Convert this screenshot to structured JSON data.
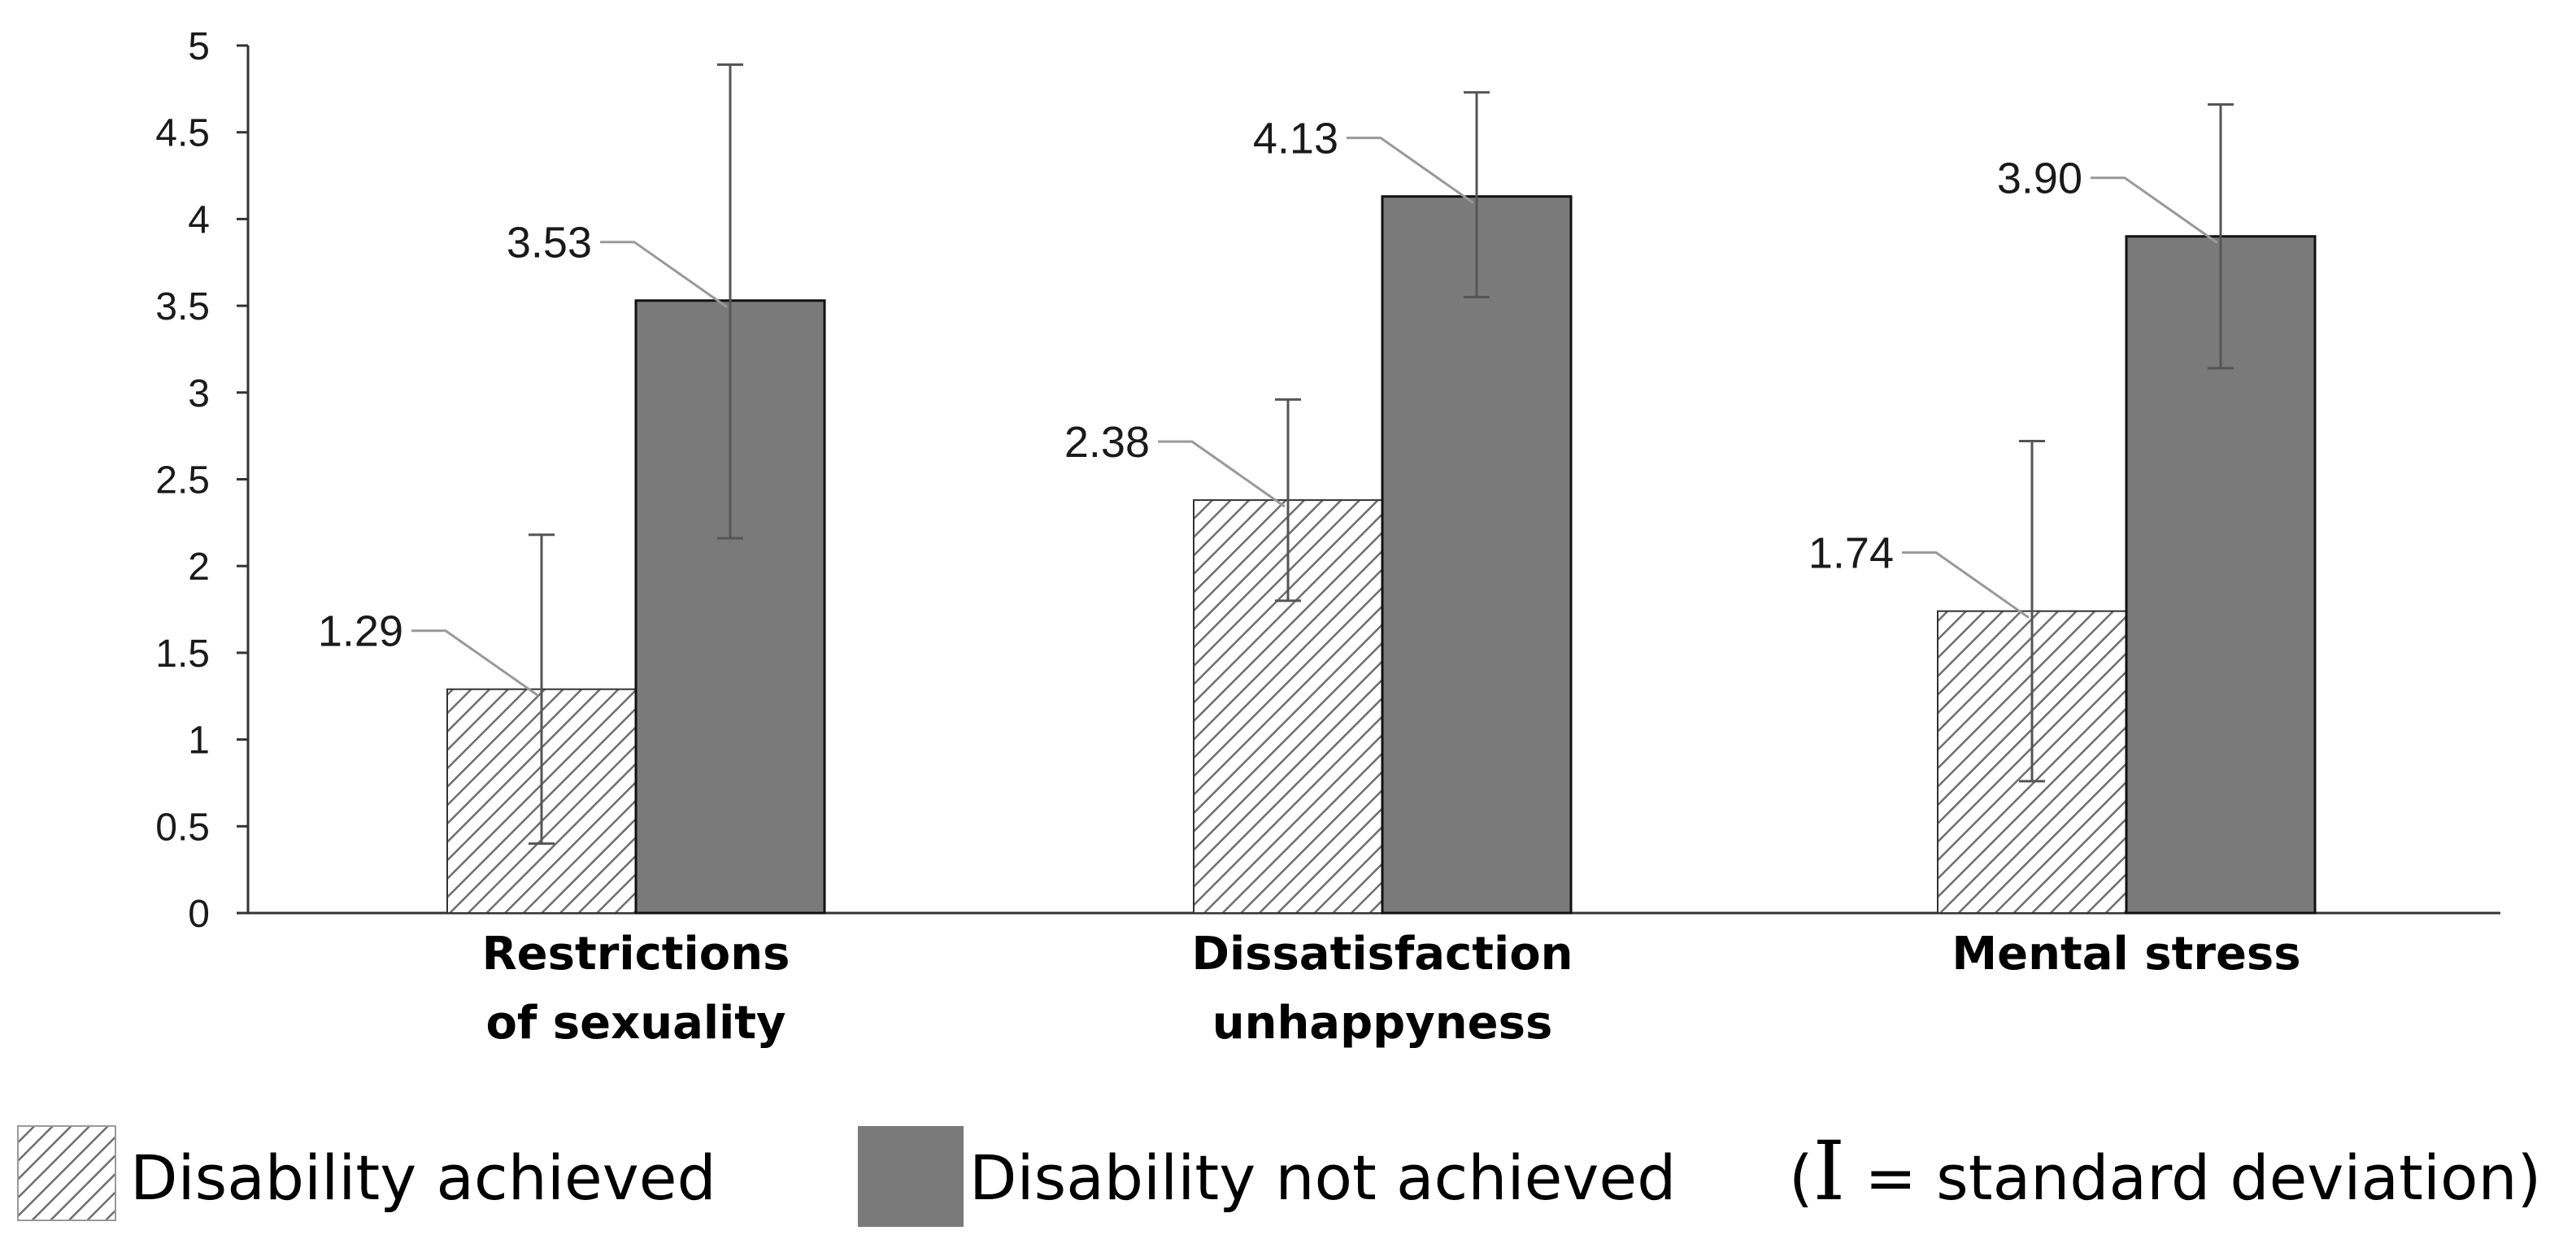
{
  "chart_data": {
    "type": "bar",
    "categories": [
      [
        "Restrictions",
        "of sexuality"
      ],
      [
        "Dissatisfaction",
        "unhappyness"
      ],
      [
        "Mental stress"
      ]
    ],
    "series": [
      {
        "name": "Disability achieved",
        "pattern": "hatched",
        "values": [
          1.29,
          2.38,
          1.74
        ],
        "labels": [
          "1.29",
          "2.38",
          "1.74"
        ],
        "err_low": [
          0.4,
          1.8,
          0.76
        ],
        "err_high": [
          2.18,
          2.96,
          2.72
        ]
      },
      {
        "name": "Disability not achieved",
        "pattern": "solid",
        "color": "#7a7a7a",
        "values": [
          3.53,
          4.13,
          3.9
        ],
        "labels": [
          "3.53",
          "4.13",
          "3.90"
        ],
        "err_low": [
          2.16,
          3.55,
          3.14
        ],
        "err_high": [
          4.89,
          4.73,
          4.66
        ]
      }
    ],
    "y_ticks": [
      "0",
      "0.5",
      "1",
      "1.5",
      "2",
      "2.5",
      "3",
      "3.5",
      "4",
      "4.5",
      "5"
    ],
    "ylim": [
      0,
      5
    ],
    "legend": {
      "achieved": "Disability achieved",
      "not_achieved": "Disability not achieved",
      "sd_open": "(",
      "sd_symbol": "I",
      "sd_text": " = standard deviation)"
    },
    "colors": {
      "solid_bar": "#7a7a7a",
      "hatch_line": "#6e6e6e",
      "axis": "#333333",
      "error_bar": "#555555",
      "leader": "#999999"
    }
  }
}
